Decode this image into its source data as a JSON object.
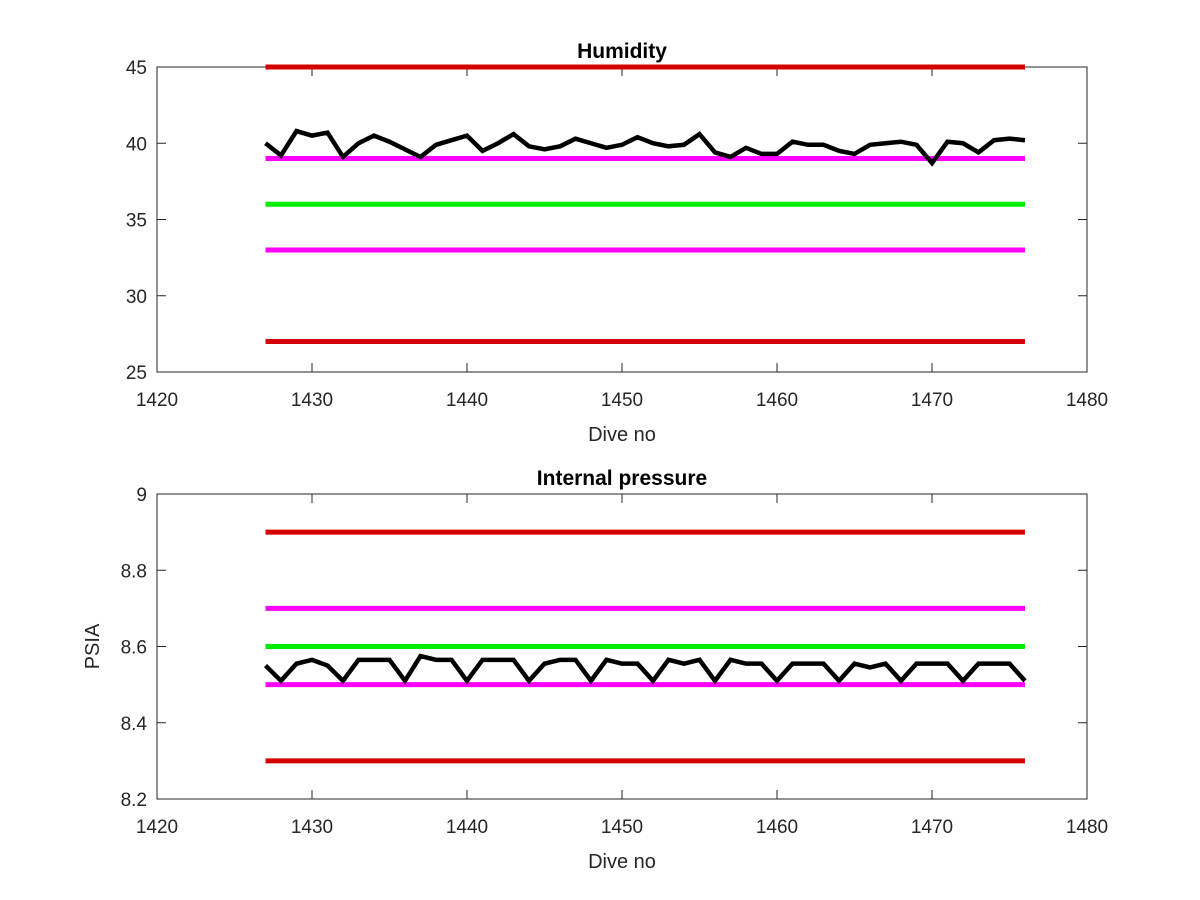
{
  "chart_data": [
    {
      "type": "line",
      "title": "Humidity",
      "xlabel": "Dive no",
      "ylabel": "",
      "xlim": [
        1420,
        1480
      ],
      "ylim": [
        25,
        45
      ],
      "xticks": [
        "1420",
        "1430",
        "1440",
        "1450",
        "1460",
        "1470",
        "1480"
      ],
      "yticks": [
        "25",
        "30",
        "35",
        "40",
        "45"
      ],
      "reference_lines": [
        {
          "value": 45,
          "color": "#d40000",
          "x": [
            1427,
            1476
          ]
        },
        {
          "value": 39,
          "color": "#ff00ff",
          "x": [
            1427,
            1476
          ]
        },
        {
          "value": 36,
          "color": "#00ee00",
          "x": [
            1427,
            1476
          ]
        },
        {
          "value": 33,
          "color": "#ff00ff",
          "x": [
            1427,
            1476
          ]
        },
        {
          "value": 27,
          "color": "#d40000",
          "x": [
            1427,
            1476
          ]
        }
      ],
      "series": [
        {
          "color": "#000000",
          "x": [
            1427,
            1428,
            1429,
            1430,
            1431,
            1432,
            1433,
            1434,
            1435,
            1436,
            1437,
            1438,
            1439,
            1440,
            1441,
            1442,
            1443,
            1444,
            1445,
            1446,
            1447,
            1448,
            1449,
            1450,
            1451,
            1452,
            1453,
            1454,
            1455,
            1456,
            1457,
            1458,
            1459,
            1460,
            1461,
            1462,
            1463,
            1464,
            1465,
            1466,
            1467,
            1468,
            1469,
            1470,
            1471,
            1472,
            1473,
            1474,
            1475,
            1476
          ],
          "values": [
            40.0,
            39.2,
            40.8,
            40.5,
            40.7,
            39.1,
            40.0,
            40.5,
            40.1,
            39.6,
            39.1,
            39.9,
            40.2,
            40.5,
            39.5,
            40.0,
            40.6,
            39.8,
            39.6,
            39.8,
            40.3,
            40.0,
            39.7,
            39.9,
            40.4,
            40.0,
            39.8,
            39.9,
            40.6,
            39.4,
            39.1,
            39.7,
            39.3,
            39.3,
            40.1,
            39.9,
            39.9,
            39.5,
            39.3,
            39.9,
            40.0,
            40.1,
            39.9,
            38.7,
            40.1,
            40.0,
            39.4,
            40.2,
            40.3,
            40.2
          ]
        }
      ]
    },
    {
      "type": "line",
      "title": "Internal pressure",
      "xlabel": "Dive no",
      "ylabel": "PSIA",
      "xlim": [
        1420,
        1480
      ],
      "ylim": [
        8.2,
        9.0
      ],
      "xticks": [
        "1420",
        "1430",
        "1440",
        "1450",
        "1460",
        "1470",
        "1480"
      ],
      "yticks": [
        "8.2",
        "8.4",
        "8.6",
        "8.8",
        "9"
      ],
      "reference_lines": [
        {
          "value": 8.9,
          "color": "#d40000",
          "x": [
            1427,
            1476
          ]
        },
        {
          "value": 8.7,
          "color": "#ff00ff",
          "x": [
            1427,
            1476
          ]
        },
        {
          "value": 8.6,
          "color": "#00ee00",
          "x": [
            1427,
            1476
          ]
        },
        {
          "value": 8.5,
          "color": "#ff00ff",
          "x": [
            1427,
            1476
          ]
        },
        {
          "value": 8.3,
          "color": "#d40000",
          "x": [
            1427,
            1476
          ]
        }
      ],
      "series": [
        {
          "color": "#000000",
          "x": [
            1427,
            1428,
            1429,
            1430,
            1431,
            1432,
            1433,
            1434,
            1435,
            1436,
            1437,
            1438,
            1439,
            1440,
            1441,
            1442,
            1443,
            1444,
            1445,
            1446,
            1447,
            1448,
            1449,
            1450,
            1451,
            1452,
            1453,
            1454,
            1455,
            1456,
            1457,
            1458,
            1459,
            1460,
            1461,
            1462,
            1463,
            1464,
            1465,
            1466,
            1467,
            1468,
            1469,
            1470,
            1471,
            1472,
            1473,
            1474,
            1475,
            1476
          ],
          "values": [
            8.55,
            8.51,
            8.555,
            8.565,
            8.55,
            8.51,
            8.565,
            8.565,
            8.565,
            8.51,
            8.575,
            8.565,
            8.565,
            8.51,
            8.565,
            8.565,
            8.565,
            8.51,
            8.555,
            8.565,
            8.565,
            8.51,
            8.565,
            8.555,
            8.555,
            8.51,
            8.565,
            8.555,
            8.565,
            8.51,
            8.565,
            8.555,
            8.555,
            8.51,
            8.555,
            8.555,
            8.555,
            8.51,
            8.555,
            8.545,
            8.555,
            8.51,
            8.555,
            8.555,
            8.555,
            8.51,
            8.555,
            8.555,
            8.555,
            8.51
          ]
        }
      ]
    }
  ]
}
